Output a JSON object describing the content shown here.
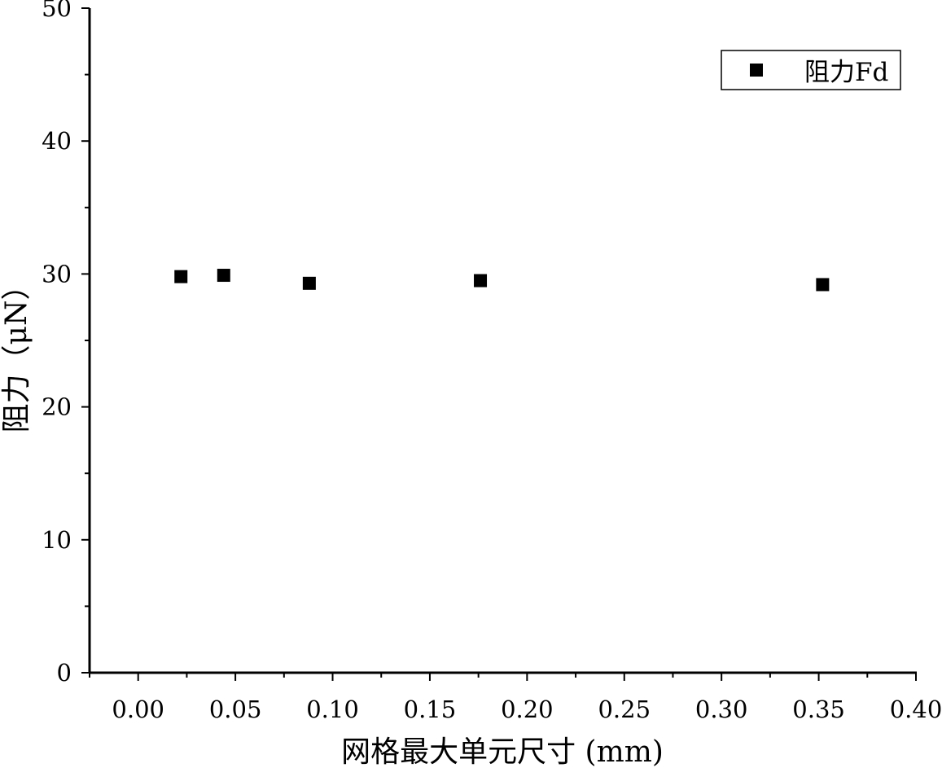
{
  "chart_data": {
    "type": "scatter",
    "xlabel": "网格最大单元尺寸 (mm)",
    "ylabel": "阻力（μN）",
    "xlim": [
      -0.025,
      0.4
    ],
    "ylim": [
      0,
      50
    ],
    "x_ticks": [
      "0.00",
      "0.05",
      "0.10",
      "0.15",
      "0.20",
      "0.25",
      "0.30",
      "0.35",
      "0.40"
    ],
    "x_tick_values": [
      0.0,
      0.05,
      0.1,
      0.15,
      0.2,
      0.25,
      0.3,
      0.35,
      0.4
    ],
    "y_ticks": [
      "0",
      "10",
      "20",
      "30",
      "40",
      "50"
    ],
    "y_tick_values": [
      0,
      10,
      20,
      30,
      40,
      50
    ],
    "grid": false,
    "legend_position": "top-right",
    "series": [
      {
        "name": "阻力Fd",
        "marker": "square",
        "color": "#000000",
        "x": [
          0.022,
          0.044,
          0.088,
          0.176,
          0.352
        ],
        "y": [
          29.8,
          29.9,
          29.3,
          29.5,
          29.2
        ]
      }
    ]
  }
}
